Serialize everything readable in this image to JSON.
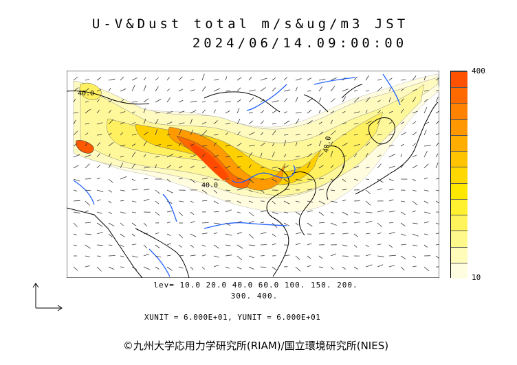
{
  "header": {
    "title_line1": "U-V&Dust total m/s&ug/m3 JST",
    "title_line2": "2024/06/14.09:00:00"
  },
  "colorbar": {
    "max_label": "400",
    "min_label": "10",
    "colors": [
      "#fffde0",
      "#fffbb8",
      "#fff88a",
      "#fff45c",
      "#fff030",
      "#ffe800",
      "#ffd800",
      "#ffc400",
      "#ffae00",
      "#ff9800",
      "#ff8200",
      "#ff6a00",
      "#ff5200"
    ]
  },
  "levels": {
    "line1": "lev= 10.0 20.0 40.0 60.0 100. 150. 200.",
    "line2": "300. 400."
  },
  "units": "XUNIT = 6.000E+01, YUNIT = 6.000E+01",
  "map_annotations": {
    "contour_40_right": "40.0",
    "contour_40_left": "40.0",
    "contour_40_west": "40.0"
  },
  "footer": {
    "copyright": "©九州大学応用力学研究所(RIAM)/国立環境研究所(NIES)"
  },
  "colors": {
    "coast": "#000000",
    "rivers": "#1e5fff",
    "dust_low": "#fff9c4",
    "dust_high": "#ff4500"
  }
}
